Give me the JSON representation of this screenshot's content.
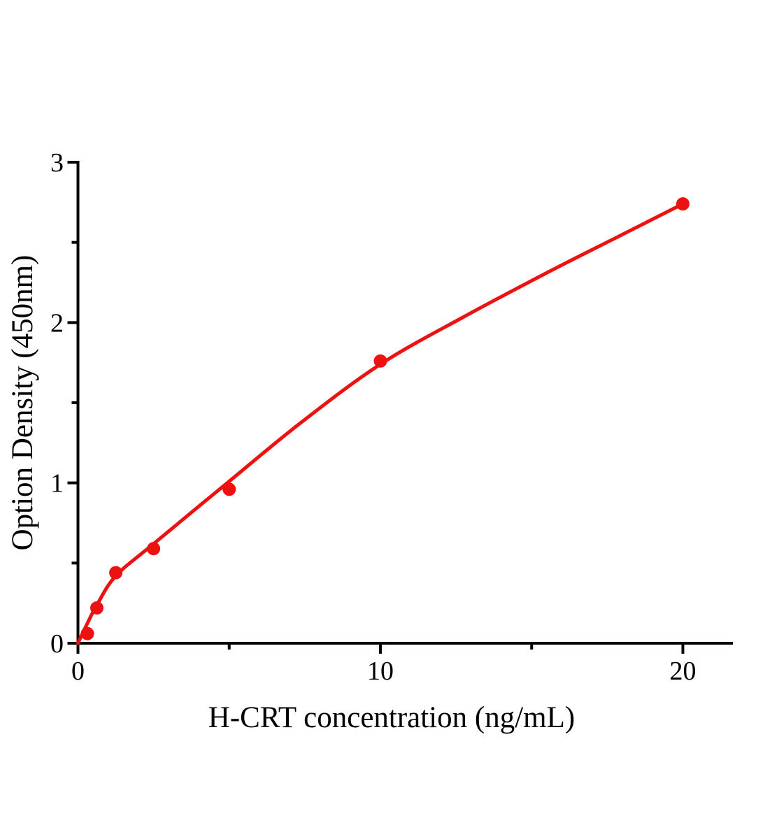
{
  "chart_data": {
    "type": "scatter",
    "title": "",
    "xlabel": "H-CRT concentration (ng/mL)",
    "ylabel": "Option Density (450nm)",
    "points": {
      "x": [
        0.313,
        0.625,
        1.25,
        2.5,
        5,
        10,
        20
      ],
      "y": [
        0.06,
        0.22,
        0.44,
        0.59,
        0.96,
        1.76,
        2.74
      ]
    },
    "fit_curve": [
      [
        0,
        0
      ],
      [
        0.3,
        0.12
      ],
      [
        0.63,
        0.24
      ],
      [
        1.25,
        0.42
      ],
      [
        2.5,
        0.62
      ],
      [
        5,
        1.01
      ],
      [
        7.4,
        1.38
      ],
      [
        10,
        1.74
      ],
      [
        12.7,
        2.03
      ],
      [
        15.5,
        2.31
      ],
      [
        17.8,
        2.53
      ],
      [
        20,
        2.74
      ]
    ],
    "x_ticks_major": [
      0,
      10,
      20
    ],
    "x_tick_labels": [
      "0",
      "10",
      "20"
    ],
    "x_ticks_minor": [
      5,
      15
    ],
    "y_ticks_major": [
      0,
      1,
      2,
      3
    ],
    "y_tick_labels": [
      "0",
      "1",
      "2",
      "3"
    ],
    "y_ticks_minor": [
      0.5,
      1.5,
      2.5
    ],
    "xlim": [
      0,
      21.6
    ],
    "ylim": [
      0,
      3
    ],
    "grid": false,
    "legend": "none",
    "marker_color": "#ee1111",
    "line_color": "#ee1111",
    "axis_color": "#000000"
  }
}
